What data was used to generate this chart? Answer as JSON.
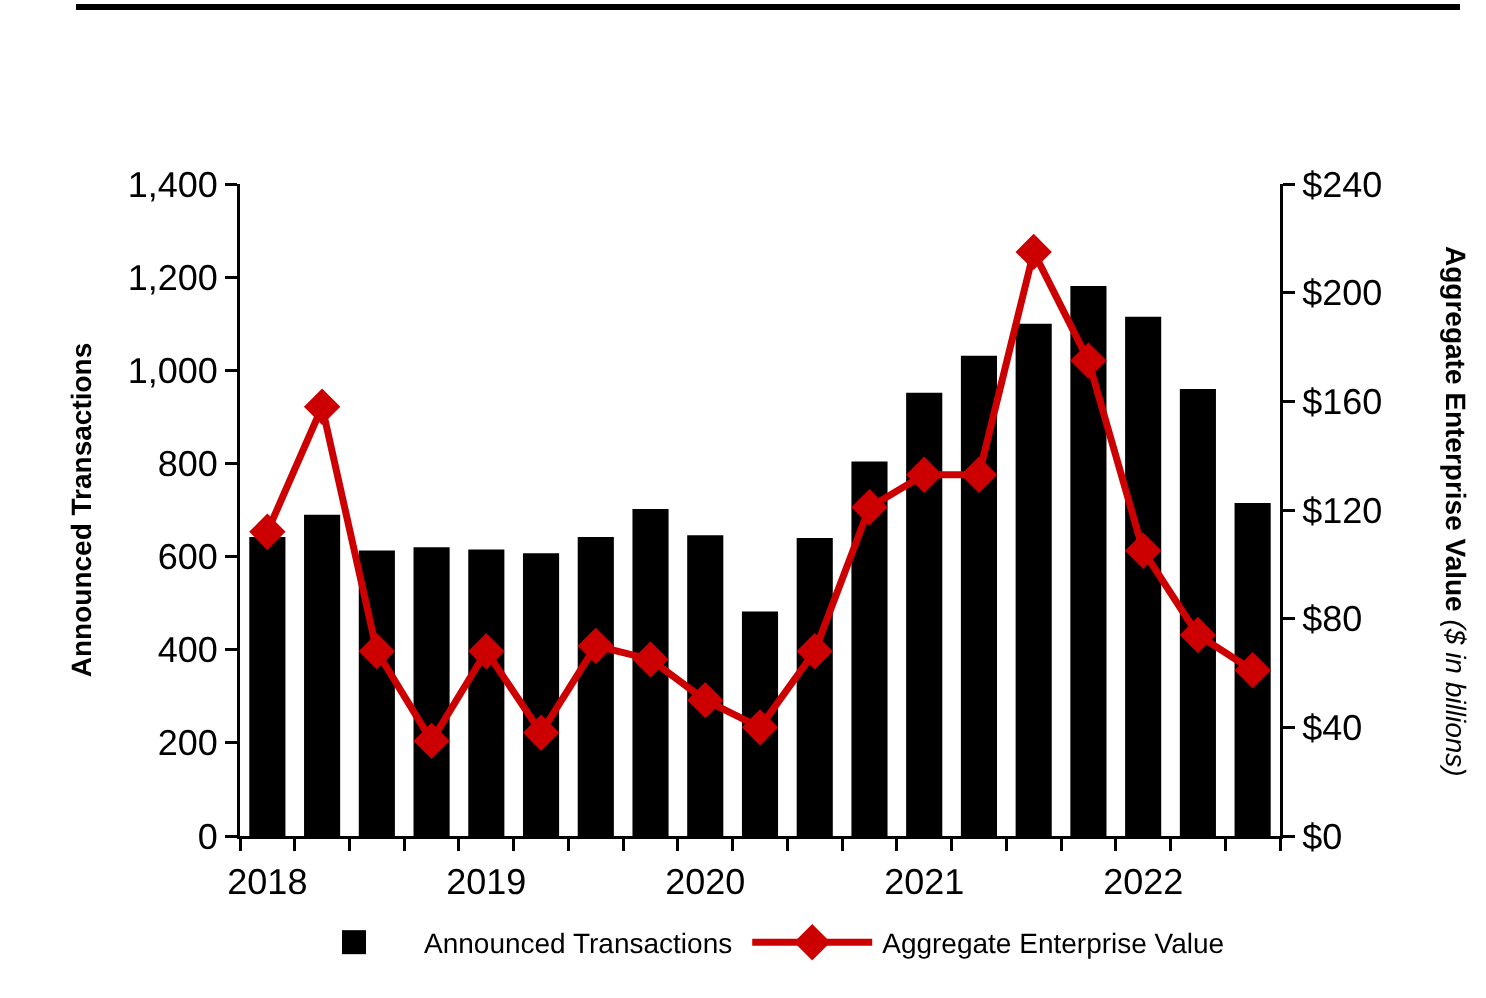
{
  "chart_data": {
    "type": "bar",
    "categories": [
      "2018",
      null,
      null,
      null,
      "2019",
      null,
      null,
      null,
      "2020",
      null,
      null,
      null,
      "2021",
      null,
      null,
      null,
      "2022",
      null,
      null
    ],
    "series": [
      {
        "name": "Announced Transactions",
        "color": "#000000",
        "values": [
          642,
          690,
          613,
          620,
          615,
          607,
          642,
          702,
          646,
          482,
          640,
          804,
          952,
          1031,
          1100,
          1181,
          1115,
          960,
          715
        ]
      },
      {
        "name": "Aggregate Enterprise Value",
        "type": "line",
        "axis": "y2",
        "color": "#cc0000",
        "marker": "diamond",
        "values": [
          112,
          158,
          68,
          35,
          68,
          38,
          70,
          65,
          50,
          40,
          68,
          121,
          133,
          133,
          215,
          175,
          105,
          74,
          61
        ]
      }
    ],
    "ylabel": "Announced Transactions",
    "y2label": "Aggregate Enterprise Value ($ in billions)",
    "ylim": [
      0,
      1400
    ],
    "yticks": [
      0,
      200,
      400,
      600,
      800,
      {
        "value": 1000,
        "label": "1,000"
      },
      {
        "value": 1200,
        "label": "1,200"
      },
      {
        "value": 1400,
        "label": "1,400"
      }
    ],
    "y2lim": [
      0,
      240
    ],
    "y2ticks": [
      {
        "value": 0,
        "label": "$0"
      },
      {
        "value": 40,
        "label": "$40"
      },
      {
        "value": 80,
        "label": "$80"
      },
      {
        "value": 120,
        "label": "$120"
      },
      {
        "value": 160,
        "label": "$160"
      },
      {
        "value": 200,
        "label": "$200"
      },
      {
        "value": 240,
        "label": "$240"
      }
    ],
    "legend": "bottom"
  }
}
